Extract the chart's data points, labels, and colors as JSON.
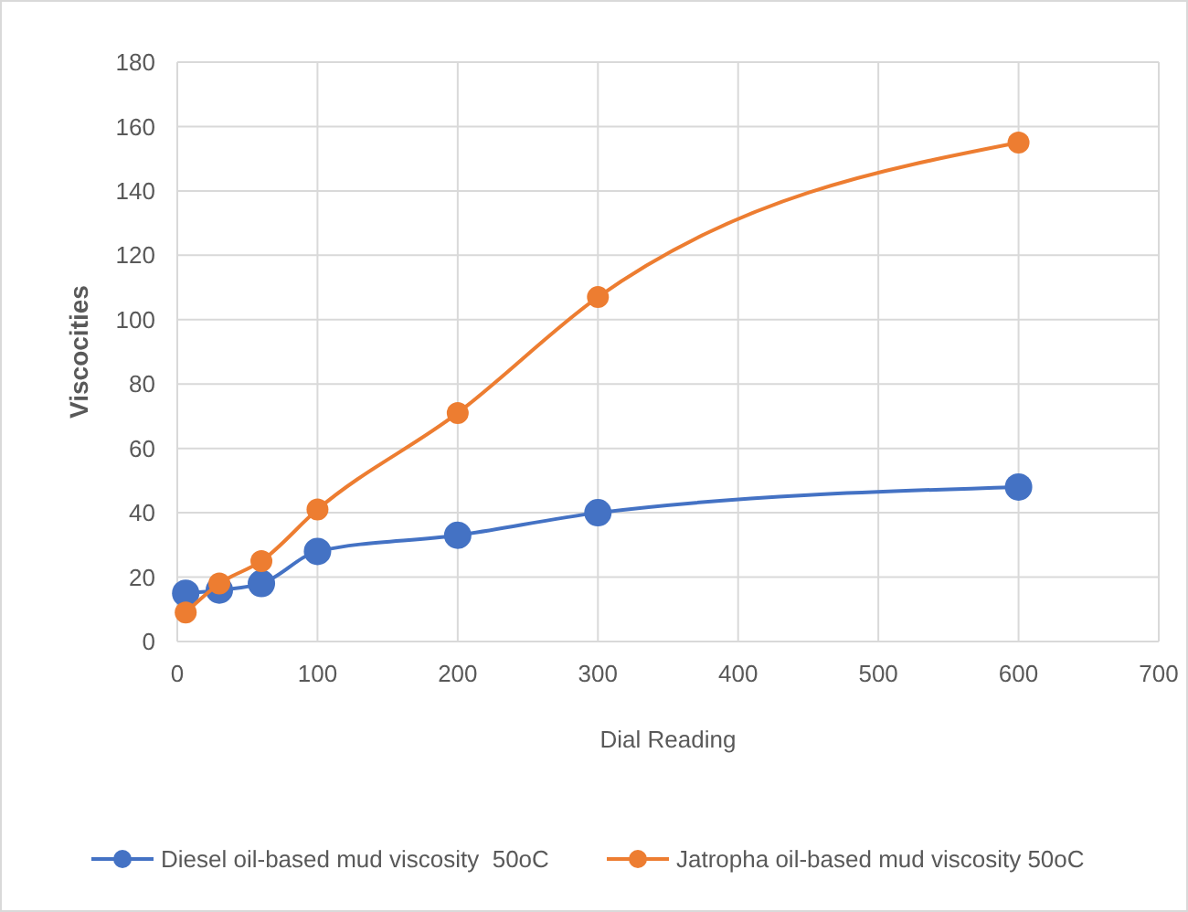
{
  "chart_data": {
    "type": "line",
    "xlabel": "Dial Reading",
    "ylabel": "Viscocities",
    "x": [
      6,
      30,
      60,
      100,
      200,
      300,
      600
    ],
    "series": [
      {
        "name": "Diesel oil-based mud viscosity  50oC",
        "color": "#4472c4",
        "values": [
          15,
          16,
          18,
          28,
          33,
          40,
          48
        ]
      },
      {
        "name": "Jatropha oil-based mud viscosity 50oC",
        "color": "#ed7d31",
        "values": [
          9,
          18,
          25,
          41,
          71,
          107,
          155
        ]
      }
    ],
    "xlim": [
      0,
      700
    ],
    "xticks": [
      0,
      100,
      200,
      300,
      400,
      500,
      600,
      700
    ],
    "ylim": [
      0,
      180
    ],
    "yticks": [
      0,
      20,
      40,
      60,
      80,
      100,
      120,
      140,
      160,
      180
    ],
    "grid": true,
    "legend": "bottom",
    "marker": "circle",
    "line_style": "solid"
  }
}
